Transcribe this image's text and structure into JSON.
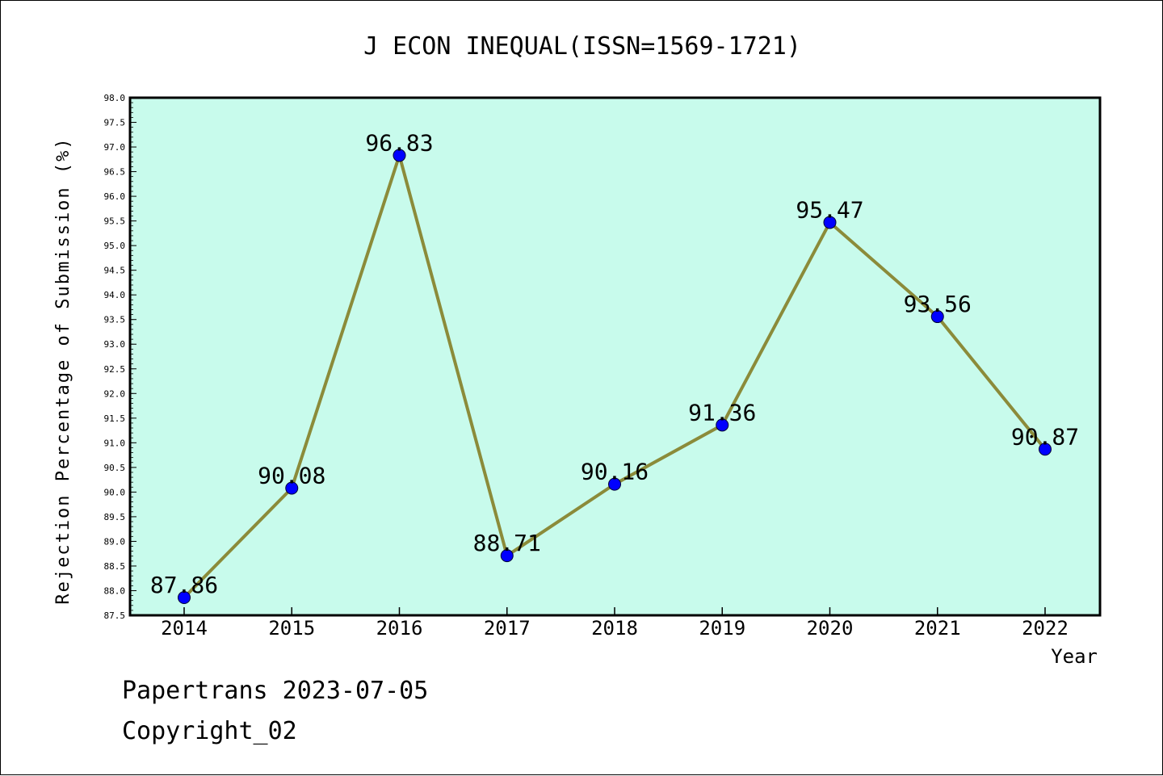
{
  "chart_data": {
    "type": "line",
    "title": "J ECON INEQUAL(ISSN=1569-1721)",
    "xlabel": "Year",
    "ylabel": "Rejection Percentage of Submission (%)",
    "categories": [
      "2014",
      "2015",
      "2016",
      "2017",
      "2018",
      "2019",
      "2020",
      "2021",
      "2022"
    ],
    "values": [
      87.86,
      90.08,
      96.83,
      88.71,
      90.16,
      91.36,
      95.47,
      93.56,
      90.87
    ],
    "data_labels": [
      "87.86",
      "90.08",
      "96.83",
      "88.71",
      "90.16",
      "91.36",
      "95.47",
      "93.56",
      "90.87"
    ],
    "ylim": [
      87.5,
      98.0
    ],
    "yticks": [
      "87.5",
      "88.0",
      "88.5",
      "89.0",
      "89.5",
      "90.0",
      "90.5",
      "91.0",
      "91.5",
      "92.0",
      "92.5",
      "93.0",
      "93.5",
      "94.0",
      "94.5",
      "95.0",
      "95.5",
      "96.0",
      "96.5",
      "97.0",
      "97.5",
      "98.0"
    ],
    "grid": false,
    "plot_background": "#c8fbec",
    "line_color": "#8b8b3a",
    "marker_color": "#0000ff"
  },
  "footer": {
    "line1": "Papertrans 2023-07-05",
    "line2": "Copyright_02"
  }
}
